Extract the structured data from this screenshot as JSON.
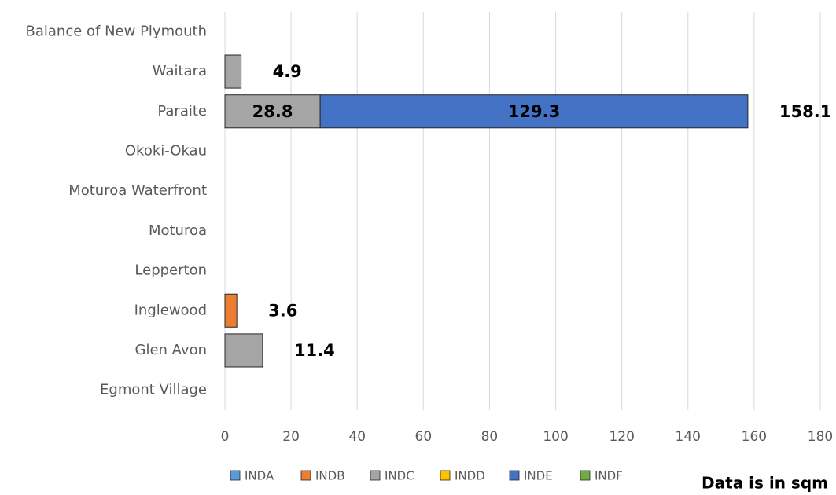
{
  "chart_data": {
    "type": "stacked-barh",
    "categories": [
      "Balance of New Plymouth",
      "Waitara",
      "Paraite",
      "Okoki-Okau",
      "Moturoa Waterfront",
      "Moturoa",
      "Lepperton",
      "Inglewood",
      "Glen Avon",
      "Egmont Village"
    ],
    "series": [
      {
        "name": "INDA",
        "color": "#5b9bd5",
        "values": [
          null,
          null,
          null,
          null,
          null,
          null,
          null,
          null,
          null,
          null
        ]
      },
      {
        "name": "INDB",
        "color": "#ed7d31",
        "values": [
          null,
          null,
          null,
          null,
          null,
          null,
          null,
          3.6,
          null,
          null
        ]
      },
      {
        "name": "INDC",
        "color": "#a5a5a5",
        "values": [
          null,
          4.9,
          28.8,
          null,
          null,
          null,
          null,
          null,
          11.4,
          null
        ]
      },
      {
        "name": "INDD",
        "color": "#ffc000",
        "values": [
          null,
          null,
          null,
          null,
          null,
          null,
          null,
          null,
          null,
          null
        ]
      },
      {
        "name": "INDE",
        "color": "#4472c4",
        "values": [
          null,
          null,
          129.3,
          null,
          null,
          null,
          null,
          null,
          null,
          null
        ]
      },
      {
        "name": "INDF",
        "color": "#70ad47",
        "values": [
          null,
          null,
          null,
          null,
          null,
          null,
          null,
          null,
          null,
          null
        ]
      }
    ],
    "totals": [
      null,
      4.9,
      158.1,
      null,
      null,
      null,
      null,
      3.6,
      11.4,
      null
    ],
    "xlim": [
      0,
      180
    ],
    "xticks": [
      0,
      20,
      40,
      60,
      80,
      100,
      120,
      140,
      160,
      180
    ],
    "grid": true,
    "legend": "bottom",
    "annotation": "Data is in sqm"
  }
}
